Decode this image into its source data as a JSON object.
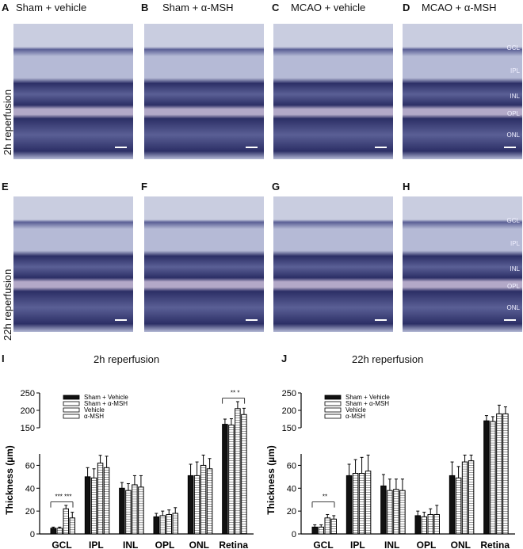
{
  "panels": {
    "A": {
      "letter": "A",
      "title": "Sham + vehicle"
    },
    "B": {
      "letter": "B",
      "title": "Sham + α-MSH"
    },
    "C": {
      "letter": "C",
      "title": "MCAO + vehicle"
    },
    "D": {
      "letter": "D",
      "title": "MCAO + α-MSH"
    },
    "E": {
      "letter": "E"
    },
    "F": {
      "letter": "F"
    },
    "G": {
      "letter": "G"
    },
    "H": {
      "letter": "H"
    }
  },
  "row_labels": [
    "2h reperfusion",
    "22h reperfusion"
  ],
  "layer_labels": [
    "GCL",
    "IPL",
    "INL",
    "OPL",
    "ONL"
  ],
  "colors": {
    "ret_bg": "#c9cde0",
    "ret_dark": "#2c2f66",
    "ret_mid": "#5a5f95",
    "ret_light": "#b5bad6",
    "ret_sep": "#b3a9c8"
  },
  "chart_data": [
    {
      "type": "bar",
      "panel": "I",
      "title": "2h reperfusion",
      "ylabel": "Thickness (µm)",
      "categories": [
        "GCL",
        "IPL",
        "INL",
        "OPL",
        "ONL",
        "Retina"
      ],
      "ylim": [
        0,
        250
      ],
      "axis_break": [
        70,
        150
      ],
      "yticks": [
        0,
        20,
        40,
        60,
        150,
        200,
        250
      ],
      "series": [
        {
          "name": "Sham + Vehicle",
          "values": [
            5,
            50,
            40,
            15,
            51,
            160
          ],
          "errors": [
            1,
            8,
            5,
            3,
            10,
            15
          ]
        },
        {
          "name": "Sham + α-MSH",
          "values": [
            5,
            49,
            38,
            16,
            51,
            158
          ],
          "errors": [
            1,
            8,
            6,
            4,
            12,
            18
          ]
        },
        {
          "name": "Vehicle",
          "values": [
            22,
            62,
            43,
            17,
            60,
            205
          ],
          "errors": [
            3,
            9,
            8,
            4,
            9,
            20
          ]
        },
        {
          "name": "α-MSH",
          "values": [
            14,
            58,
            41,
            18,
            57,
            188
          ],
          "errors": [
            5,
            10,
            10,
            5,
            9,
            18
          ]
        }
      ],
      "significance": [
        {
          "category": "GCL",
          "text": "*** ***"
        },
        {
          "category": "Retina",
          "text": "**   *"
        }
      ],
      "legend": "top-left"
    },
    {
      "type": "bar",
      "panel": "J",
      "title": "22h reperfusion",
      "ylabel": "Thickness (µm)",
      "categories": [
        "GCL",
        "IPL",
        "INL",
        "OPL",
        "ONL",
        "Retina"
      ],
      "ylim": [
        0,
        250
      ],
      "axis_break": [
        70,
        150
      ],
      "yticks": [
        0,
        20,
        40,
        60,
        150,
        200,
        250
      ],
      "series": [
        {
          "name": "Sham + Vehicle",
          "values": [
            6,
            51,
            42,
            16,
            51,
            170
          ],
          "errors": [
            2,
            10,
            10,
            4,
            12,
            15
          ]
        },
        {
          "name": "Sham + α-MSH",
          "values": [
            6,
            53,
            38,
            15,
            49,
            168
          ],
          "errors": [
            2,
            12,
            10,
            4,
            10,
            14
          ]
        },
        {
          "name": "Vehicle",
          "values": [
            14,
            53,
            39,
            17,
            63,
            190
          ],
          "errors": [
            3,
            14,
            9,
            5,
            6,
            25
          ]
        },
        {
          "name": "α-MSH",
          "values": [
            13,
            55,
            38,
            17,
            64,
            190
          ],
          "errors": [
            3,
            14,
            10,
            8,
            5,
            20
          ]
        }
      ],
      "significance": [
        {
          "category": "GCL",
          "text": "**"
        }
      ],
      "legend": "top-left"
    }
  ],
  "chart_letters": [
    "I",
    "J"
  ]
}
